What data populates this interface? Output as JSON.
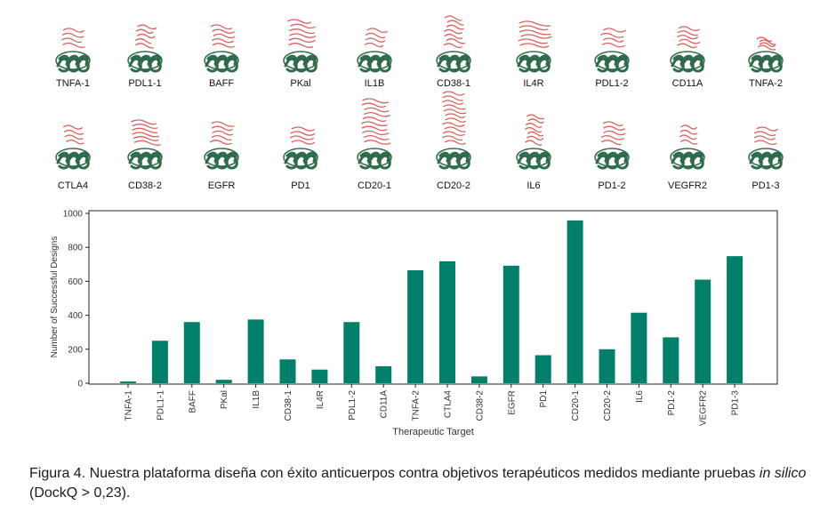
{
  "structures": {
    "row1": [
      "TNFA-1",
      "PDL1-1",
      "BAFF",
      "PKal",
      "IL1B",
      "CD38-1",
      "IL4R",
      "PDL1-2",
      "CD11A",
      "TNFA-2"
    ],
    "row2": [
      "CTLA4",
      "CD38-2",
      "EGFR",
      "PD1",
      "CD20-1",
      "CD20-2",
      "IL6",
      "PD1-2",
      "VEGFR2",
      "PD1-3"
    ],
    "antibody_color": "#2e6b4a",
    "target_color": "#d9635c"
  },
  "chart_data": {
    "type": "bar",
    "categories": [
      "TNFA-1",
      "PDL1-1",
      "BAFF",
      "PKal",
      "IL1B",
      "CD38-1",
      "IL4R",
      "PDL1-2",
      "CD11A",
      "TNFA-2",
      "CTLA4",
      "CD38-2",
      "EGFR",
      "PD1",
      "CD20-1",
      "CD20-2",
      "IL6",
      "PD1-2",
      "VEGFR2",
      "PD1-3"
    ],
    "values": [
      10,
      250,
      360,
      20,
      375,
      140,
      80,
      360,
      100,
      665,
      718,
      40,
      692,
      165,
      958,
      200,
      415,
      270,
      610,
      748
    ],
    "xlabel": "Therapeutic Target",
    "ylabel": "Number of Successful Designs",
    "ylim": [
      0,
      1000
    ],
    "yticks": [
      0,
      200,
      400,
      600,
      800,
      1000
    ],
    "bar_color": "#00806a",
    "grid": false,
    "legend": "none"
  },
  "caption": {
    "prefix": "Figura 4. Nuestra plataforma diseña con éxito anticuerpos contra objetivos terapéuticos medidos mediante pruebas ",
    "italic": "in silico",
    "suffix": " (DockQ > 0,23)."
  }
}
